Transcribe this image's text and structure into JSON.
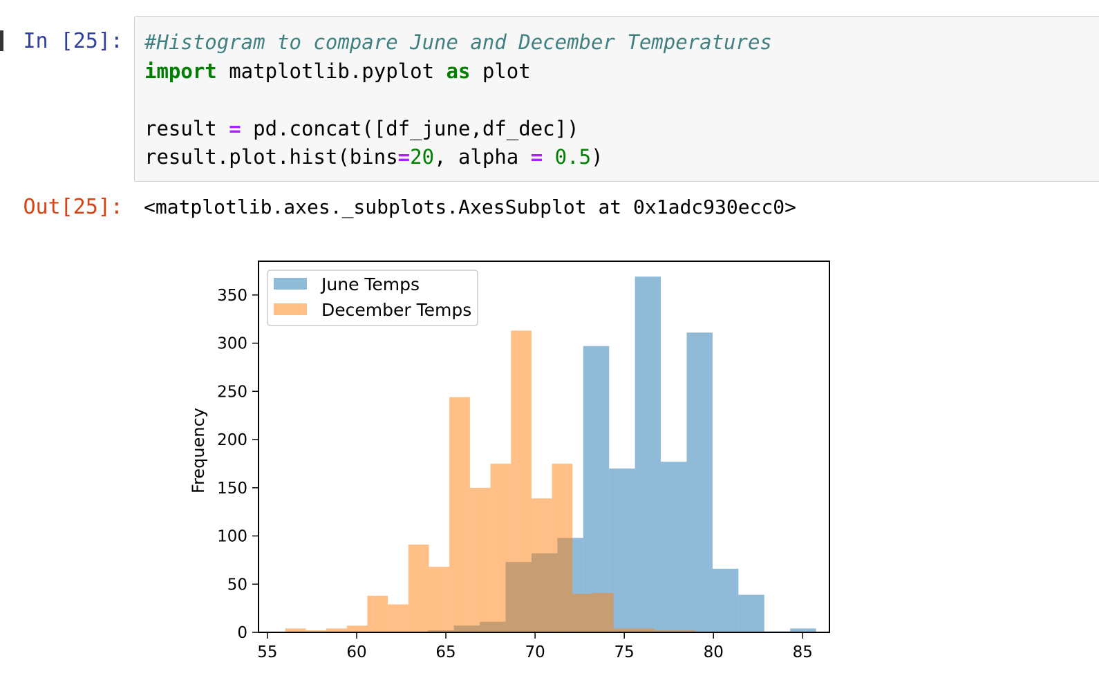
{
  "cell": {
    "in_prompt": "In [25]:",
    "out_prompt": "Out[25]:",
    "code": {
      "comment": "#Histogram to compare June and December Temperatures",
      "line2": {
        "kw_import": "import",
        "module": " matplotlib.pyplot ",
        "kw_as": "as",
        "alias": " plot"
      },
      "line4": {
        "lhs": "result ",
        "op": "=",
        "rhs": " pd.concat([df_june,df_dec])"
      },
      "line5": {
        "call": "result.plot.hist(bins",
        "op1": "=",
        "num1": "20",
        "mid": ", alpha ",
        "op2": "=",
        "gap": " ",
        "num2": "0.5",
        "close": ")"
      }
    },
    "output_text": "<matplotlib.axes._subplots.AxesSubplot at 0x1adc930ecc0>"
  },
  "colors": {
    "june": "#1f77b4",
    "december": "#ff7f0e",
    "prompt_in": "#303f9f",
    "prompt_out": "#d84315"
  },
  "chart_data": {
    "type": "bar",
    "subtype": "overlapping-histogram",
    "ylabel": "Frequency",
    "xlim": [
      54.5,
      86.5
    ],
    "ylim": [
      0,
      385
    ],
    "x_ticks": [
      55,
      60,
      65,
      70,
      75,
      80,
      85
    ],
    "y_ticks": [
      0,
      50,
      100,
      150,
      200,
      250,
      300,
      350
    ],
    "alpha": 0.5,
    "legend": {
      "position": "upper-left"
    },
    "series": [
      {
        "name": "June Temps",
        "color": "#1f77b4",
        "bin_edges": [
          64,
          65.45,
          66.9,
          68.35,
          69.8,
          71.25,
          72.7,
          74.15,
          75.6,
          77.05,
          78.5,
          79.95,
          81.4,
          82.85,
          84.3,
          85.75
        ],
        "values": [
          2,
          7,
          11,
          73,
          82,
          98,
          297,
          170,
          369,
          177,
          311,
          66,
          39,
          1,
          4
        ]
      },
      {
        "name": "December Temps",
        "color": "#ff7f0e",
        "bin_edges": [
          56,
          57.15,
          58.3,
          59.45,
          60.6,
          61.75,
          62.9,
          64.05,
          65.2,
          66.35,
          67.5,
          68.65,
          69.8,
          70.95,
          72.1,
          73.25,
          74.4,
          75.55,
          76.7,
          77.85,
          79
        ],
        "values": [
          4,
          2,
          4,
          7,
          38,
          29,
          91,
          68,
          244,
          150,
          175,
          313,
          139,
          175,
          40,
          41,
          4,
          4,
          2,
          2
        ]
      }
    ]
  }
}
